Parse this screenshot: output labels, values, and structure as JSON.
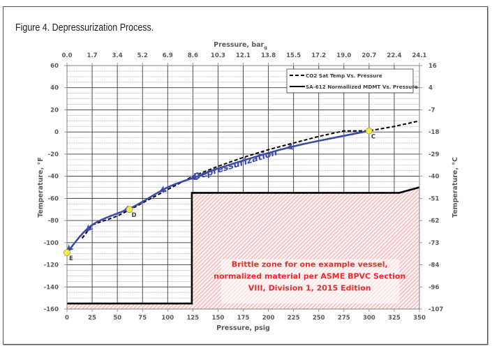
{
  "figure_title": "Figure 4. Depressurization Process.",
  "chart_data": {
    "type": "line",
    "title": "Figure 4. Depressurization Process.",
    "xlabel": "Pressure, psig",
    "x2label": "Pressure, bar",
    "x2label_sub": "g",
    "ylabel": "Temperature, °F",
    "y2label": "Temperature, °C",
    "xlim": [
      0,
      350
    ],
    "ylim": [
      -160,
      60
    ],
    "x_ticks": [
      "0",
      "25",
      "50",
      "75",
      "100",
      "125",
      "150",
      "175",
      "200",
      "225",
      "250",
      "275",
      "300",
      "325",
      "350"
    ],
    "x2_ticks": [
      "0.0",
      "1.7",
      "3.4",
      "5.2",
      "6.9",
      "8.6",
      "10.3",
      "12.1",
      "13.8",
      "15.5",
      "17.2",
      "19.0",
      "20.7",
      "22.4",
      "24.1"
    ],
    "y_ticks": [
      "60",
      "40",
      "20",
      "0",
      "-20",
      "-40",
      "-60",
      "-80",
      "-100",
      "-120",
      "-140",
      "-160"
    ],
    "y2_ticks": [
      "16",
      "4",
      "-7",
      "-18",
      "-29",
      "-40",
      "-51",
      "-62",
      "-73",
      "-84",
      "-96",
      "-107"
    ],
    "grid": true,
    "legend_position": "top-right",
    "series": [
      {
        "name": "CO2 Sat Temp Vs. Pressure",
        "style": "dashed",
        "color": "#000000",
        "x": [
          15,
          25,
          50,
          65,
          100,
          125,
          150,
          175,
          200,
          225,
          250,
          275,
          300,
          325,
          350
        ],
        "y": [
          -96,
          -84,
          -76,
          -69,
          -52,
          -40,
          -31,
          -23,
          -16,
          -10,
          -4,
          1,
          1,
          5,
          10
        ]
      },
      {
        "name": "SA-612 Normallized MDMT Vs. Pressure",
        "style": "solid",
        "color": "#000000",
        "x": [
          0,
          124,
          124,
          330,
          350
        ],
        "y": [
          -155,
          -155,
          -55,
          -55,
          -50
        ]
      }
    ],
    "process_path": {
      "name": "Depressurization",
      "color": "#3a4aa6",
      "x": [
        300,
        250,
        225,
        200,
        150,
        130,
        100,
        65,
        25,
        0
      ],
      "y": [
        1,
        -8,
        -13,
        -19,
        -33,
        -40,
        -50,
        -68,
        -84,
        -109
      ]
    },
    "points": [
      {
        "label": "C",
        "x": 300,
        "y": 1
      },
      {
        "label": "D",
        "x": 62,
        "y": -70
      },
      {
        "label": "E",
        "x": 0,
        "y": -109
      }
    ],
    "annotations": {
      "brittle_zone": [
        "Brittle zone for one example vessel,",
        "normalized material per ASME BPVC Section",
        "VIII, Division 1, 2015 Edition"
      ],
      "path_label": "Depressurization"
    },
    "colors": {
      "brittle_hatch": "#f08a8a",
      "annotation_text": "#ee2b2b",
      "marker_fill": "#f5ea4a"
    }
  }
}
